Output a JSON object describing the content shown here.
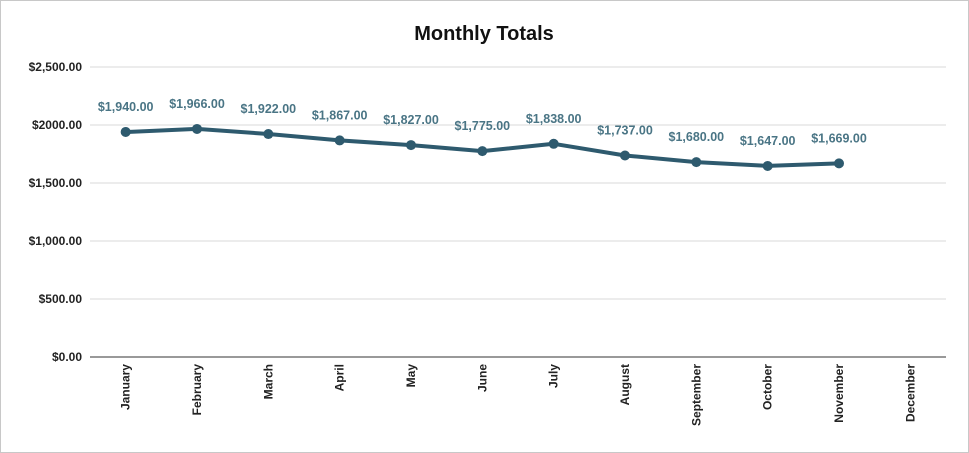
{
  "chart_data": {
    "type": "line",
    "title": "Monthly Totals",
    "xlabel": "",
    "ylabel": "",
    "categories": [
      "January",
      "February",
      "March",
      "April",
      "May",
      "June",
      "July",
      "August",
      "September",
      "October",
      "November",
      "December"
    ],
    "series": [
      {
        "values": [
          1940,
          1966,
          1922,
          1867,
          1827,
          1775,
          1838,
          1737,
          1680,
          1647,
          1669,
          null
        ],
        "data_labels": [
          "$1,940.00",
          "$1,966.00",
          "$1,922.00",
          "$1,867.00",
          "$1,827.00",
          "$1,775.00",
          "$1,838.00",
          "$1,737.00",
          "$1,680.00",
          "$1,647.00",
          "$1,669.00",
          ""
        ]
      }
    ],
    "ylim": [
      0,
      2500
    ],
    "yticks": [
      0,
      500,
      1000,
      1500,
      2000,
      2500
    ],
    "ytick_labels": [
      "$0.00",
      "$500.00",
      "$1,000.00",
      "$1,500.00",
      "$2000.00",
      "$2,500.00"
    ],
    "grid": true,
    "legend": "none",
    "colors": {
      "line": "#2e5a6e",
      "label": "#4a7585"
    }
  }
}
